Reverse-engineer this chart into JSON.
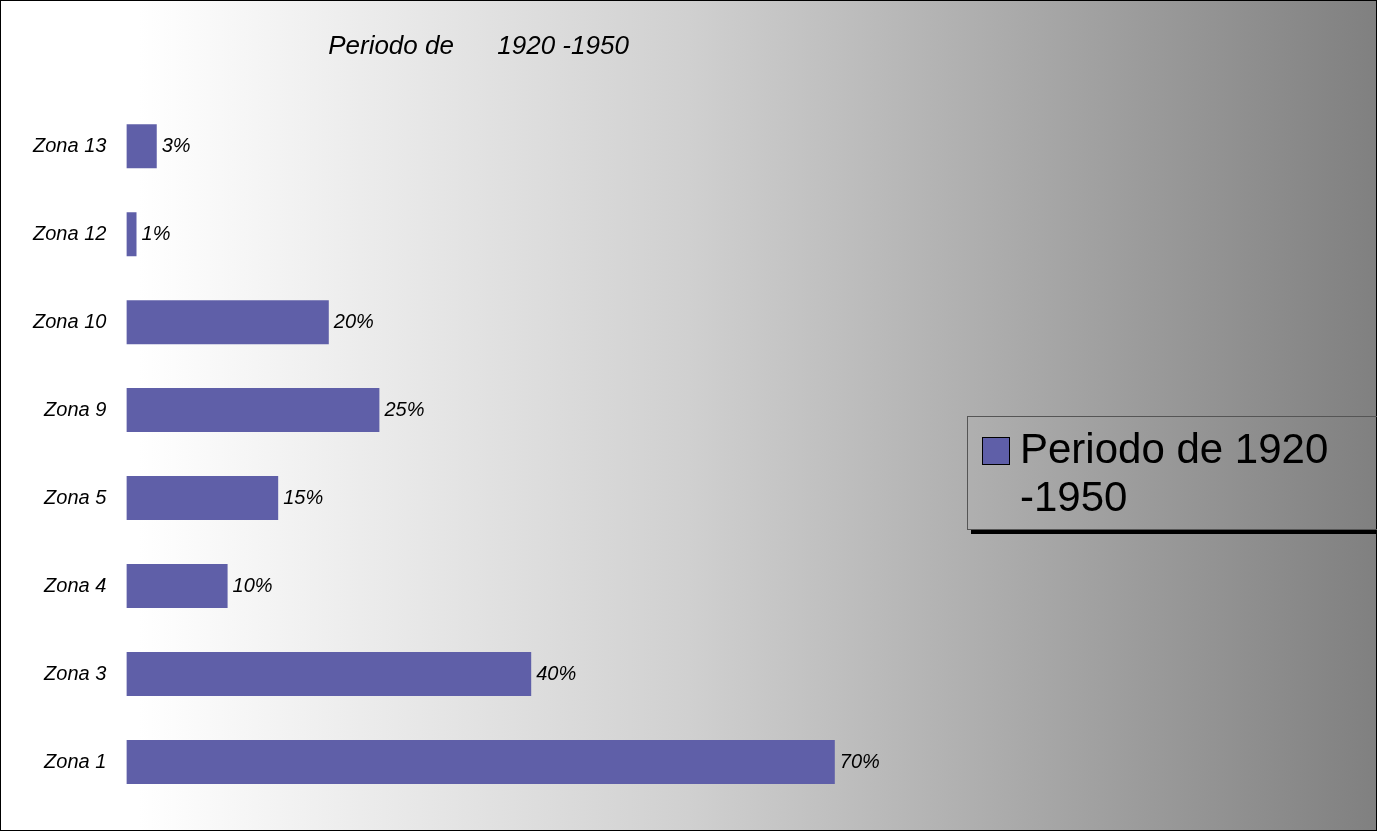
{
  "chart_data": {
    "type": "bar",
    "orientation": "horizontal",
    "title": "Periodo de      1920 -1950",
    "categories": [
      "Zona 13",
      "Zona 12",
      "Zona 10",
      "Zona 9",
      "Zona 5",
      "Zona 4",
      "Zona 3",
      "Zona 1"
    ],
    "series": [
      {
        "name": "Periodo de 1920 -1950",
        "color": "#5f5fa8",
        "values": [
          3,
          1,
          20,
          25,
          15,
          10,
          40,
          70
        ],
        "value_labels": [
          "3%",
          "1%",
          "20%",
          "25%",
          "15%",
          "10%",
          "40%",
          "70%"
        ]
      }
    ],
    "tick_labels": "y",
    "legend": "right"
  }
}
